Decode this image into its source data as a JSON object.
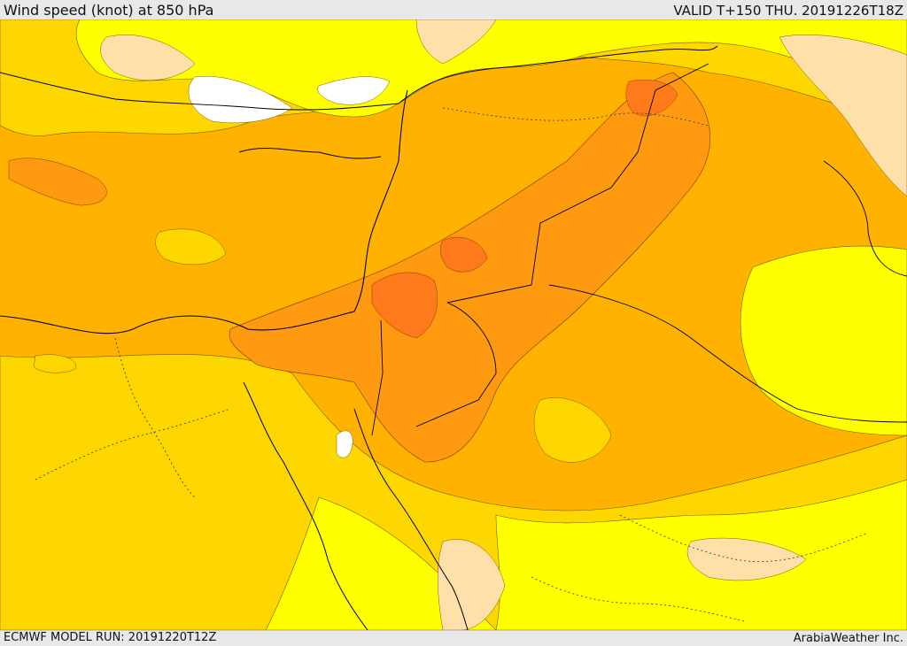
{
  "header": {
    "title": "Wind speed (knot) at 850 hPa",
    "valid": "VALID T+150 THU. 20191226T18Z"
  },
  "footer": {
    "model_run": "ECMWF MODEL RUN: 20191220T12Z",
    "credit": "ArabiaWeather Inc."
  },
  "map": {
    "colors": {
      "sea_background": "#ffb000",
      "calm_white": "#ffffff",
      "light_tan": "#ffe0a8",
      "yellow": "#ffff00",
      "gold": "#ffd700",
      "amber": "#ffb300",
      "orange": "#ff9a10",
      "dark_orange": "#ff7a1a",
      "coastline": "#000000",
      "border_dotted": "#333333"
    }
  }
}
